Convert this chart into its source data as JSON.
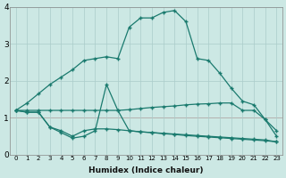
{
  "xlabel": "Humidex (Indice chaleur)",
  "bg_color": "#cce8e4",
  "grid_color": "#aaccca",
  "line_color": "#1a7a6e",
  "line1_x": [
    0,
    1,
    2,
    3,
    4,
    5,
    6,
    7,
    8,
    9,
    10,
    11,
    12,
    13,
    14,
    15,
    16,
    17,
    18,
    19,
    20,
    21,
    22,
    23
  ],
  "line1_y": [
    1.2,
    1.4,
    1.65,
    1.9,
    2.1,
    2.3,
    2.55,
    2.6,
    2.65,
    2.6,
    3.45,
    3.7,
    3.7,
    3.85,
    3.9,
    3.6,
    2.6,
    2.55,
    2.2,
    1.8,
    1.45,
    1.35,
    0.95,
    0.65
  ],
  "line2_x": [
    0,
    1,
    2,
    3,
    4,
    5,
    6,
    7,
    8,
    9,
    10,
    11,
    12,
    13,
    14,
    15,
    16,
    17,
    18,
    19,
    20,
    21,
    22,
    23
  ],
  "line2_y": [
    1.2,
    1.2,
    1.2,
    1.2,
    1.2,
    1.2,
    1.2,
    1.2,
    1.2,
    1.2,
    1.22,
    1.25,
    1.28,
    1.3,
    1.32,
    1.35,
    1.37,
    1.38,
    1.4,
    1.4,
    1.2,
    1.2,
    0.95,
    0.5
  ],
  "line3_x": [
    0,
    1,
    2,
    3,
    4,
    5,
    6,
    7,
    8,
    9,
    10,
    11,
    12,
    13,
    14,
    15,
    16,
    17,
    18,
    19,
    20,
    21,
    22,
    23
  ],
  "line3_y": [
    1.2,
    1.15,
    1.15,
    0.75,
    0.6,
    0.45,
    0.5,
    0.65,
    1.9,
    1.2,
    0.65,
    0.62,
    0.6,
    0.58,
    0.56,
    0.54,
    0.52,
    0.5,
    0.48,
    0.46,
    0.44,
    0.42,
    0.4,
    0.35
  ],
  "line4_x": [
    0,
    1,
    2,
    3,
    4,
    5,
    6,
    7,
    8,
    9,
    10,
    11,
    12,
    13,
    14,
    15,
    16,
    17,
    18,
    19,
    20,
    21,
    22,
    23
  ],
  "line4_y": [
    1.2,
    1.15,
    1.15,
    0.75,
    0.65,
    0.5,
    0.65,
    0.7,
    0.7,
    0.68,
    0.65,
    0.62,
    0.6,
    0.57,
    0.55,
    0.52,
    0.5,
    0.48,
    0.46,
    0.44,
    0.42,
    0.4,
    0.38,
    0.35
  ],
  "xlim": [
    -0.5,
    23.5
  ],
  "ylim": [
    0,
    4
  ],
  "xticks": [
    0,
    1,
    2,
    3,
    4,
    5,
    6,
    7,
    8,
    9,
    10,
    11,
    12,
    13,
    14,
    15,
    16,
    17,
    18,
    19,
    20,
    21,
    22,
    23
  ],
  "yticks": [
    0,
    1,
    2,
    3,
    4
  ]
}
